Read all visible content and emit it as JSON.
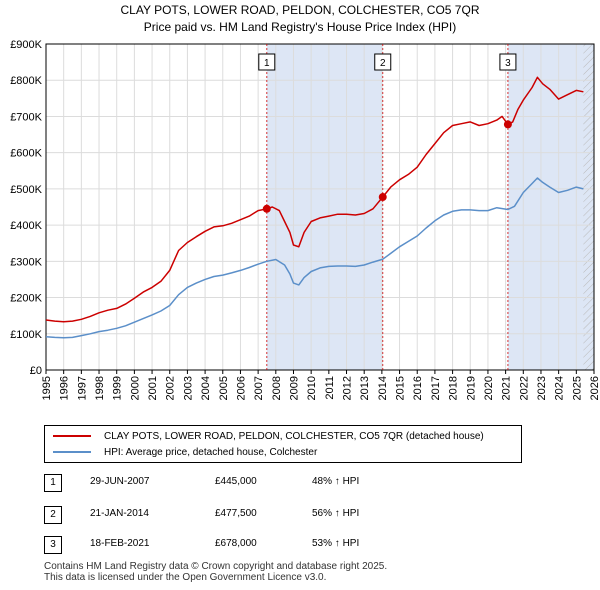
{
  "chart_data": {
    "type": "line",
    "title": "CLAY POTS, LOWER ROAD, PELDON, COLCHESTER, CO5 7QR",
    "subtitle": "Price paid vs. HM Land Registry's House Price Index (HPI)",
    "xlabel": "",
    "ylabel": "",
    "xlim": [
      1995,
      2026
    ],
    "ylim": [
      0,
      900000
    ],
    "x_ticks": [
      "1995",
      "1996",
      "1997",
      "1998",
      "1999",
      "2000",
      "2001",
      "2002",
      "2003",
      "2004",
      "2005",
      "2006",
      "2007",
      "2008",
      "2009",
      "2010",
      "2011",
      "2012",
      "2013",
      "2014",
      "2015",
      "2016",
      "2017",
      "2018",
      "2019",
      "2020",
      "2021",
      "2022",
      "2023",
      "2024",
      "2025",
      "2026"
    ],
    "y_ticks": [
      {
        "value": 0,
        "label": "£0"
      },
      {
        "value": 100000,
        "label": "£100K"
      },
      {
        "value": 200000,
        "label": "£200K"
      },
      {
        "value": 300000,
        "label": "£300K"
      },
      {
        "value": 400000,
        "label": "£400K"
      },
      {
        "value": 500000,
        "label": "£500K"
      },
      {
        "value": 600000,
        "label": "£600K"
      },
      {
        "value": 700000,
        "label": "£700K"
      },
      {
        "value": 800000,
        "label": "£800K"
      },
      {
        "value": 900000,
        "label": "£900K"
      }
    ],
    "grid": true,
    "series": [
      {
        "name": "CLAY POTS, LOWER ROAD, PELDON, COLCHESTER, CO5 7QR (detached house)",
        "color": "#cc0000",
        "points": [
          [
            1995.0,
            138000
          ],
          [
            1995.5,
            135000
          ],
          [
            1996.0,
            133000
          ],
          [
            1996.5,
            135000
          ],
          [
            1997.0,
            140000
          ],
          [
            1997.5,
            148000
          ],
          [
            1998.0,
            158000
          ],
          [
            1998.5,
            165000
          ],
          [
            1999.0,
            170000
          ],
          [
            1999.5,
            182000
          ],
          [
            2000.0,
            198000
          ],
          [
            2000.5,
            215000
          ],
          [
            2001.0,
            228000
          ],
          [
            2001.5,
            245000
          ],
          [
            2002.0,
            275000
          ],
          [
            2002.5,
            330000
          ],
          [
            2003.0,
            352000
          ],
          [
            2003.5,
            368000
          ],
          [
            2004.0,
            383000
          ],
          [
            2004.5,
            395000
          ],
          [
            2005.0,
            398000
          ],
          [
            2005.5,
            405000
          ],
          [
            2006.0,
            415000
          ],
          [
            2006.5,
            425000
          ],
          [
            2007.0,
            440000
          ],
          [
            2007.49,
            445000
          ],
          [
            2007.8,
            450000
          ],
          [
            2008.2,
            440000
          ],
          [
            2008.5,
            410000
          ],
          [
            2008.8,
            380000
          ],
          [
            2009.0,
            345000
          ],
          [
            2009.3,
            340000
          ],
          [
            2009.6,
            380000
          ],
          [
            2010.0,
            410000
          ],
          [
            2010.5,
            420000
          ],
          [
            2011.0,
            425000
          ],
          [
            2011.5,
            430000
          ],
          [
            2012.0,
            430000
          ],
          [
            2012.5,
            428000
          ],
          [
            2013.0,
            432000
          ],
          [
            2013.5,
            445000
          ],
          [
            2014.05,
            477500
          ],
          [
            2014.5,
            505000
          ],
          [
            2015.0,
            525000
          ],
          [
            2015.5,
            540000
          ],
          [
            2016.0,
            560000
          ],
          [
            2016.5,
            595000
          ],
          [
            2017.0,
            625000
          ],
          [
            2017.5,
            655000
          ],
          [
            2018.0,
            675000
          ],
          [
            2018.5,
            680000
          ],
          [
            2019.0,
            685000
          ],
          [
            2019.5,
            675000
          ],
          [
            2020.0,
            680000
          ],
          [
            2020.5,
            690000
          ],
          [
            2020.8,
            700000
          ],
          [
            2021.13,
            678000
          ],
          [
            2021.4,
            685000
          ],
          [
            2021.7,
            720000
          ],
          [
            2022.0,
            745000
          ],
          [
            2022.5,
            780000
          ],
          [
            2022.8,
            808000
          ],
          [
            2023.1,
            790000
          ],
          [
            2023.5,
            775000
          ],
          [
            2024.0,
            748000
          ],
          [
            2024.5,
            760000
          ],
          [
            2025.0,
            772000
          ],
          [
            2025.4,
            768000
          ]
        ]
      },
      {
        "name": "HPI: Average price, detached house, Colchester",
        "color": "#5b8fc9",
        "points": [
          [
            1995.0,
            92000
          ],
          [
            1995.5,
            90000
          ],
          [
            1996.0,
            89000
          ],
          [
            1996.5,
            90000
          ],
          [
            1997.0,
            95000
          ],
          [
            1997.5,
            100000
          ],
          [
            1998.0,
            106000
          ],
          [
            1998.5,
            110000
          ],
          [
            1999.0,
            115000
          ],
          [
            1999.5,
            122000
          ],
          [
            2000.0,
            132000
          ],
          [
            2000.5,
            142000
          ],
          [
            2001.0,
            152000
          ],
          [
            2001.5,
            163000
          ],
          [
            2002.0,
            178000
          ],
          [
            2002.5,
            208000
          ],
          [
            2003.0,
            228000
          ],
          [
            2003.5,
            240000
          ],
          [
            2004.0,
            250000
          ],
          [
            2004.5,
            258000
          ],
          [
            2005.0,
            262000
          ],
          [
            2005.5,
            268000
          ],
          [
            2006.0,
            275000
          ],
          [
            2006.5,
            283000
          ],
          [
            2007.0,
            292000
          ],
          [
            2007.49,
            300000
          ],
          [
            2008.0,
            305000
          ],
          [
            2008.5,
            290000
          ],
          [
            2008.8,
            265000
          ],
          [
            2009.0,
            240000
          ],
          [
            2009.3,
            235000
          ],
          [
            2009.6,
            255000
          ],
          [
            2010.0,
            272000
          ],
          [
            2010.5,
            282000
          ],
          [
            2011.0,
            286000
          ],
          [
            2011.5,
            287000
          ],
          [
            2012.0,
            287000
          ],
          [
            2012.5,
            286000
          ],
          [
            2013.0,
            290000
          ],
          [
            2013.5,
            298000
          ],
          [
            2014.05,
            306000
          ],
          [
            2014.5,
            322000
          ],
          [
            2015.0,
            340000
          ],
          [
            2015.5,
            355000
          ],
          [
            2016.0,
            370000
          ],
          [
            2016.5,
            392000
          ],
          [
            2017.0,
            412000
          ],
          [
            2017.5,
            428000
          ],
          [
            2018.0,
            438000
          ],
          [
            2018.5,
            442000
          ],
          [
            2019.0,
            442000
          ],
          [
            2019.5,
            440000
          ],
          [
            2020.0,
            440000
          ],
          [
            2020.5,
            448000
          ],
          [
            2021.13,
            443000
          ],
          [
            2021.5,
            452000
          ],
          [
            2022.0,
            490000
          ],
          [
            2022.5,
            515000
          ],
          [
            2022.8,
            530000
          ],
          [
            2023.1,
            518000
          ],
          [
            2023.5,
            505000
          ],
          [
            2024.0,
            490000
          ],
          [
            2024.5,
            496000
          ],
          [
            2025.0,
            505000
          ],
          [
            2025.4,
            500000
          ]
        ]
      }
    ],
    "markers": [
      {
        "label": "1",
        "x": 2007.49,
        "y": 445000
      },
      {
        "label": "2",
        "x": 2014.05,
        "y": 477500
      },
      {
        "label": "3",
        "x": 2021.13,
        "y": 678000
      }
    ],
    "shaded_ranges": [
      [
        2007.49,
        2014.05
      ],
      [
        2021.13,
        2026.0
      ]
    ],
    "hatched_range": [
      2025.4,
      2026.0
    ]
  },
  "legend": {
    "items": [
      {
        "label": "CLAY POTS, LOWER ROAD, PELDON, COLCHESTER, CO5 7QR (detached house)",
        "color": "#cc0000"
      },
      {
        "label": "HPI: Average price, detached house, Colchester",
        "color": "#5b8fc9"
      }
    ]
  },
  "transactions": [
    {
      "num": "1",
      "date": "29-JUN-2007",
      "price": "£445,000",
      "hpi": "48% ↑ HPI"
    },
    {
      "num": "2",
      "date": "21-JAN-2014",
      "price": "£477,500",
      "hpi": "56% ↑ HPI"
    },
    {
      "num": "3",
      "date": "18-FEB-2021",
      "price": "£678,000",
      "hpi": "53% ↑ HPI"
    }
  ],
  "footer": {
    "line1": "Contains HM Land Registry data © Crown copyright and database right 2025.",
    "line2": "This data is licensed under the Open Government Licence v3.0."
  }
}
